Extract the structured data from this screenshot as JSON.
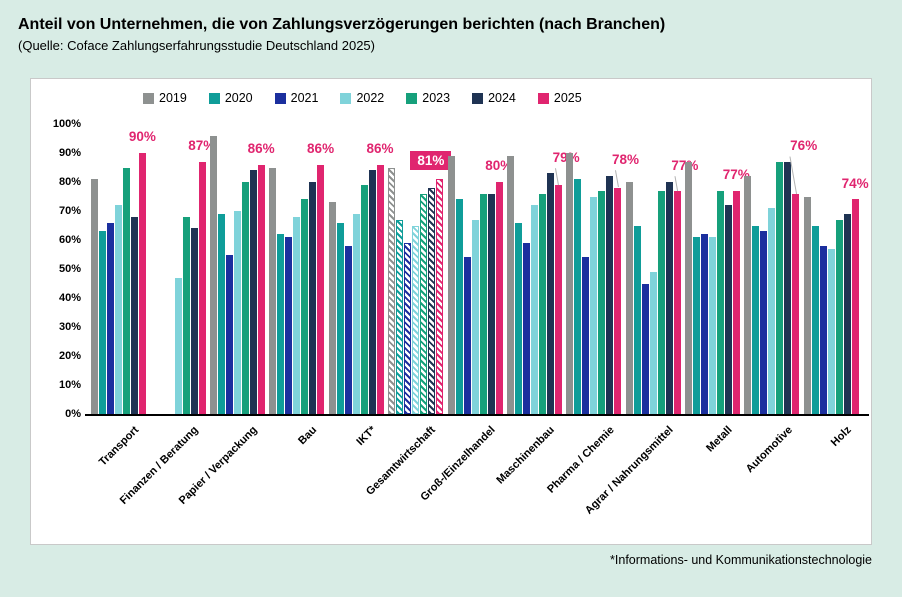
{
  "header": {
    "title": "Anteil von Unternehmen, die von Zahlungsverzögerungen berichten (nach Branchen)",
    "subtitle": "(Quelle: Coface Zahlungserfahrungsstudie Deutschland 2025)"
  },
  "footnote": "*Informations- und Kommunikationstechnologie",
  "chart_data": {
    "type": "bar",
    "title": "Anteil von Unternehmen, die von Zahlungsverzögerungen berichten (nach Branchen)",
    "source": "Coface Zahlungserfahrungsstudie Deutschland 2025",
    "ylim": [
      0,
      100
    ],
    "y_ticks": [
      "0%",
      "10%",
      "20%",
      "30%",
      "40%",
      "50%",
      "60%",
      "70%",
      "80%",
      "90%",
      "100%"
    ],
    "grid": false,
    "legend_position": "top",
    "accent_color": "#e0256f",
    "series": [
      {
        "name": "2019",
        "color": "#8e9190"
      },
      {
        "name": "2020",
        "color": "#0f9d99"
      },
      {
        "name": "2021",
        "color": "#1b2f9e"
      },
      {
        "name": "2022",
        "color": "#7fd3da"
      },
      {
        "name": "2023",
        "color": "#16a07b"
      },
      {
        "name": "2024",
        "color": "#1f3353"
      },
      {
        "name": "2025",
        "color": "#e0256f"
      }
    ],
    "categories": [
      {
        "label": "Transport",
        "values": [
          81,
          63,
          66,
          72,
          85,
          68,
          90
        ],
        "value_label": "90%"
      },
      {
        "label": "Finanzen / Beratung",
        "values": [
          null,
          null,
          null,
          47,
          68,
          64,
          87
        ],
        "value_label": "87%"
      },
      {
        "label": "Papier / Verpackung",
        "values": [
          96,
          69,
          55,
          70,
          80,
          84,
          86
        ],
        "value_label": "86%"
      },
      {
        "label": "Bau",
        "values": [
          85,
          62,
          61,
          68,
          74,
          80,
          86
        ],
        "value_label": "86%"
      },
      {
        "label": "IKT*",
        "values": [
          73,
          66,
          58,
          69,
          79,
          84,
          86
        ],
        "value_label": "86%"
      },
      {
        "label": "Gesamtwirtschaft",
        "values": [
          85,
          67,
          59,
          65,
          76,
          78,
          81
        ],
        "value_label": "81%",
        "hatched": true,
        "label_boxed": true
      },
      {
        "label": "Groß-/Einzelhandel",
        "values": [
          89,
          74,
          54,
          67,
          76,
          76,
          80
        ],
        "value_label": "80%"
      },
      {
        "label": "Maschinenbau",
        "values": [
          89,
          66,
          59,
          72,
          76,
          83,
          79
        ],
        "value_label": "79%"
      },
      {
        "label": "Pharma / Chemie",
        "values": [
          90,
          81,
          54,
          75,
          77,
          82,
          78
        ],
        "value_label": "78%"
      },
      {
        "label": "Agrar / Nahrungsmittel",
        "values": [
          80,
          65,
          45,
          49,
          77,
          80,
          77
        ],
        "value_label": "77%"
      },
      {
        "label": "Metall",
        "values": [
          87,
          61,
          62,
          61,
          77,
          72,
          77
        ],
        "value_label": "77%"
      },
      {
        "label": "Automotive",
        "values": [
          82,
          65,
          63,
          71,
          87,
          87,
          76
        ],
        "value_label": "76%"
      },
      {
        "label": "Holz",
        "values": [
          75,
          65,
          58,
          57,
          67,
          69,
          74
        ],
        "value_label": "74%"
      }
    ]
  }
}
